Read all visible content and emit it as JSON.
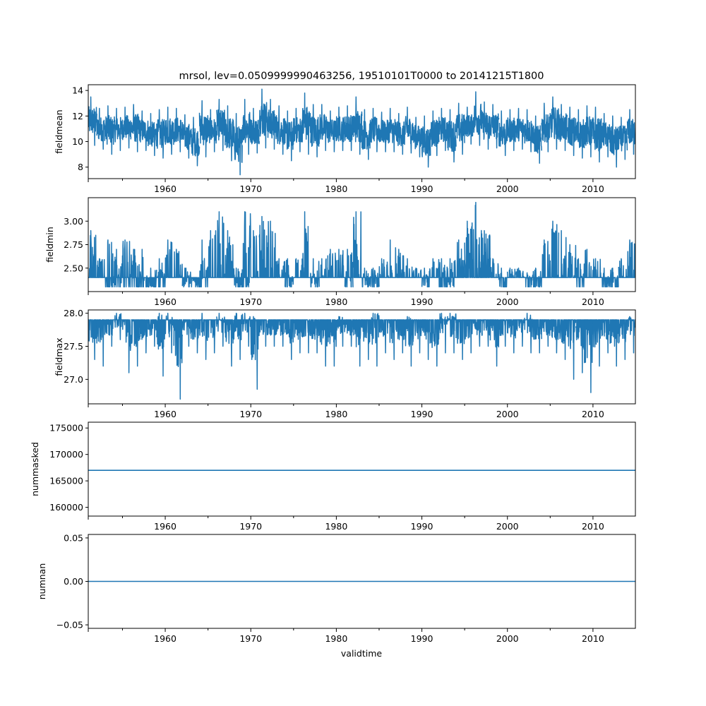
{
  "chart_data": {
    "type": "line",
    "title": "mrsol, lev=0.0509999990463256, 19510101T0000 to 20141215T1800",
    "xlabel": "validtime",
    "xlim": [
      1951.0,
      2014.96
    ],
    "x_major_ticks": [
      1960,
      1970,
      1980,
      1990,
      2000,
      2010
    ],
    "x_minor_ticks": [
      1955,
      1965,
      1975,
      1985,
      1995,
      2005
    ],
    "line_color": "#1f77b4",
    "years": [
      1951,
      1952,
      1953,
      1954,
      1955,
      1956,
      1957,
      1958,
      1959,
      1960,
      1961,
      1962,
      1963,
      1964,
      1965,
      1966,
      1967,
      1968,
      1969,
      1970,
      1971,
      1972,
      1973,
      1974,
      1975,
      1976,
      1977,
      1978,
      1979,
      1980,
      1981,
      1982,
      1983,
      1984,
      1985,
      1986,
      1987,
      1988,
      1989,
      1990,
      1991,
      1992,
      1993,
      1994,
      1995,
      1996,
      1997,
      1998,
      1999,
      2000,
      2001,
      2002,
      2003,
      2004,
      2005,
      2006,
      2007,
      2008,
      2009,
      2010,
      2011,
      2012,
      2013,
      2014
    ],
    "panels": [
      {
        "ylabel": "fieldmean",
        "ylim": [
          7.1,
          14.45
        ],
        "yticks": [
          8,
          10,
          12,
          14
        ],
        "yticklabels": [
          "8",
          "10",
          "12",
          "14"
        ],
        "kind": "yearly_range",
        "baseline": 10.5,
        "yearly_low_high": [
          [
            9.7,
            13.5
          ],
          [
            9.4,
            12.6
          ],
          [
            9.0,
            12.8
          ],
          [
            9.3,
            12.6
          ],
          [
            9.5,
            12.7
          ],
          [
            9.2,
            12.9
          ],
          [
            9.3,
            12.4
          ],
          [
            8.9,
            12.2
          ],
          [
            8.7,
            12.5
          ],
          [
            9.0,
            12.7
          ],
          [
            9.2,
            12.6
          ],
          [
            8.7,
            12.1
          ],
          [
            8.1,
            11.9
          ],
          [
            8.8,
            13.2
          ],
          [
            9.2,
            12.5
          ],
          [
            9.3,
            13.3
          ],
          [
            8.5,
            12.8
          ],
          [
            7.4,
            12.2
          ],
          [
            9.0,
            13.3
          ],
          [
            9.1,
            12.6
          ],
          [
            9.5,
            14.1
          ],
          [
            9.4,
            13.3
          ],
          [
            9.0,
            12.8
          ],
          [
            8.5,
            12.4
          ],
          [
            9.2,
            12.6
          ],
          [
            9.0,
            13.8
          ],
          [
            8.8,
            12.9
          ],
          [
            9.3,
            12.9
          ],
          [
            9.2,
            12.4
          ],
          [
            9.3,
            12.7
          ],
          [
            9.3,
            12.8
          ],
          [
            9.0,
            13.5
          ],
          [
            8.6,
            12.5
          ],
          [
            9.2,
            12.6
          ],
          [
            9.2,
            12.3
          ],
          [
            9.2,
            12.6
          ],
          [
            9.0,
            12.2
          ],
          [
            9.1,
            12.7
          ],
          [
            8.8,
            11.9
          ],
          [
            8.0,
            12.0
          ],
          [
            8.9,
            12.4
          ],
          [
            9.3,
            12.6
          ],
          [
            8.4,
            12.5
          ],
          [
            9.0,
            13.0
          ],
          [
            9.8,
            12.7
          ],
          [
            9.7,
            13.9
          ],
          [
            9.4,
            13.1
          ],
          [
            9.5,
            12.9
          ],
          [
            8.9,
            12.4
          ],
          [
            9.3,
            12.5
          ],
          [
            9.4,
            12.6
          ],
          [
            9.2,
            12.5
          ],
          [
            8.3,
            12.0
          ],
          [
            9.2,
            13.0
          ],
          [
            9.4,
            13.5
          ],
          [
            9.3,
            12.9
          ],
          [
            8.9,
            12.7
          ],
          [
            8.7,
            12.5
          ],
          [
            8.8,
            12.8
          ],
          [
            8.4,
            12.7
          ],
          [
            8.8,
            12.2
          ],
          [
            8.0,
            12.0
          ],
          [
            8.6,
            11.9
          ],
          [
            9.0,
            12.5
          ]
        ]
      },
      {
        "ylabel": "fieldmin",
        "ylim": [
          2.25,
          3.25
        ],
        "yticks": [
          2.5,
          2.75,
          3.0
        ],
        "yticklabels": [
          "2.50",
          "2.75",
          "3.00"
        ],
        "kind": "yearly_range",
        "baseline": 2.4,
        "yearly_low_high": [
          [
            2.4,
            2.9
          ],
          [
            2.4,
            2.6
          ],
          [
            2.3,
            2.8
          ],
          [
            2.3,
            2.7
          ],
          [
            2.3,
            2.8
          ],
          [
            2.3,
            2.7
          ],
          [
            2.3,
            2.7
          ],
          [
            2.3,
            2.5
          ],
          [
            2.3,
            2.6
          ],
          [
            2.4,
            2.8
          ],
          [
            2.4,
            2.7
          ],
          [
            2.3,
            2.5
          ],
          [
            2.3,
            2.4
          ],
          [
            2.3,
            2.8
          ],
          [
            2.4,
            2.9
          ],
          [
            2.4,
            3.1
          ],
          [
            2.4,
            2.9
          ],
          [
            2.3,
            2.5
          ],
          [
            2.3,
            3.1
          ],
          [
            2.4,
            2.9
          ],
          [
            2.5,
            3.05
          ],
          [
            2.4,
            3.0
          ],
          [
            2.4,
            2.6
          ],
          [
            2.3,
            2.6
          ],
          [
            2.4,
            2.6
          ],
          [
            2.4,
            3.1
          ],
          [
            2.3,
            2.6
          ],
          [
            2.4,
            2.6
          ],
          [
            2.4,
            2.7
          ],
          [
            2.4,
            2.7
          ],
          [
            2.3,
            2.7
          ],
          [
            2.4,
            3.1
          ],
          [
            2.3,
            2.5
          ],
          [
            2.3,
            2.5
          ],
          [
            2.4,
            2.6
          ],
          [
            2.4,
            2.8
          ],
          [
            2.4,
            2.7
          ],
          [
            2.4,
            2.6
          ],
          [
            2.4,
            2.5
          ],
          [
            2.3,
            2.5
          ],
          [
            2.4,
            2.6
          ],
          [
            2.3,
            2.6
          ],
          [
            2.3,
            2.6
          ],
          [
            2.4,
            2.8
          ],
          [
            2.5,
            3.0
          ],
          [
            2.5,
            3.2
          ],
          [
            2.4,
            2.9
          ],
          [
            2.4,
            2.6
          ],
          [
            2.3,
            2.5
          ],
          [
            2.4,
            2.5
          ],
          [
            2.4,
            2.5
          ],
          [
            2.3,
            2.45
          ],
          [
            2.3,
            2.5
          ],
          [
            2.4,
            2.8
          ],
          [
            2.4,
            3.0
          ],
          [
            2.4,
            2.9
          ],
          [
            2.4,
            2.75
          ],
          [
            2.3,
            2.6
          ],
          [
            2.4,
            2.7
          ],
          [
            2.4,
            2.6
          ],
          [
            2.3,
            2.5
          ],
          [
            2.3,
            2.5
          ],
          [
            2.4,
            2.6
          ],
          [
            2.4,
            2.8
          ]
        ]
      },
      {
        "ylabel": "fieldmax",
        "ylim": [
          26.63,
          28.05
        ],
        "yticks": [
          27.0,
          27.5,
          28.0
        ],
        "yticklabels": [
          "27.0",
          "27.5",
          "28.0"
        ],
        "kind": "yearly_range",
        "baseline": 27.9,
        "yearly_low_high": [
          [
            27.3,
            27.9
          ],
          [
            27.2,
            27.9
          ],
          [
            27.5,
            27.9
          ],
          [
            27.6,
            28.0
          ],
          [
            27.1,
            27.9
          ],
          [
            27.2,
            27.9
          ],
          [
            27.4,
            27.9
          ],
          [
            27.5,
            27.9
          ],
          [
            27.05,
            28.0
          ],
          [
            27.4,
            28.0
          ],
          [
            26.7,
            27.9
          ],
          [
            27.5,
            27.9
          ],
          [
            27.4,
            27.9
          ],
          [
            27.3,
            28.0
          ],
          [
            27.4,
            27.9
          ],
          [
            27.5,
            28.0
          ],
          [
            27.2,
            27.9
          ],
          [
            27.3,
            28.0
          ],
          [
            27.5,
            28.0
          ],
          [
            26.85,
            27.95
          ],
          [
            27.5,
            27.9
          ],
          [
            27.5,
            27.9
          ],
          [
            27.5,
            27.9
          ],
          [
            27.3,
            27.9
          ],
          [
            27.4,
            27.9
          ],
          [
            27.4,
            27.9
          ],
          [
            27.4,
            27.9
          ],
          [
            27.2,
            27.9
          ],
          [
            27.2,
            27.9
          ],
          [
            27.5,
            27.95
          ],
          [
            27.5,
            27.9
          ],
          [
            27.2,
            27.9
          ],
          [
            27.3,
            27.9
          ],
          [
            27.2,
            28.0
          ],
          [
            27.4,
            27.9
          ],
          [
            27.3,
            27.9
          ],
          [
            27.4,
            27.9
          ],
          [
            27.2,
            27.95
          ],
          [
            27.4,
            27.9
          ],
          [
            27.3,
            27.9
          ],
          [
            27.2,
            27.9
          ],
          [
            27.4,
            28.0
          ],
          [
            27.4,
            28.0
          ],
          [
            27.3,
            27.9
          ],
          [
            27.4,
            27.9
          ],
          [
            27.5,
            27.9
          ],
          [
            27.5,
            27.9
          ],
          [
            27.2,
            27.9
          ],
          [
            27.5,
            27.9
          ],
          [
            27.4,
            27.9
          ],
          [
            27.5,
            27.9
          ],
          [
            27.4,
            28.0
          ],
          [
            27.4,
            27.9
          ],
          [
            27.5,
            27.9
          ],
          [
            27.4,
            27.9
          ],
          [
            27.3,
            27.9
          ],
          [
            27.0,
            27.9
          ],
          [
            27.1,
            27.9
          ],
          [
            26.8,
            27.9
          ],
          [
            27.2,
            27.9
          ],
          [
            27.4,
            27.9
          ],
          [
            27.2,
            27.9
          ],
          [
            27.3,
            27.9
          ],
          [
            27.4,
            27.95
          ]
        ]
      },
      {
        "ylabel": "nummasked",
        "ylim": [
          158340,
          176100
        ],
        "yticks": [
          160000,
          165000,
          170000,
          175000
        ],
        "yticklabels": [
          "160000",
          "165000",
          "170000",
          "175000"
        ],
        "kind": "constant",
        "value": 167000
      },
      {
        "ylabel": "numnan",
        "ylim": [
          -0.054,
          0.054
        ],
        "yticks": [
          -0.05,
          0.0,
          0.05
        ],
        "yticklabels": [
          "−0.05",
          "0.00",
          "0.05"
        ],
        "kind": "constant",
        "value": 0.0
      }
    ]
  }
}
